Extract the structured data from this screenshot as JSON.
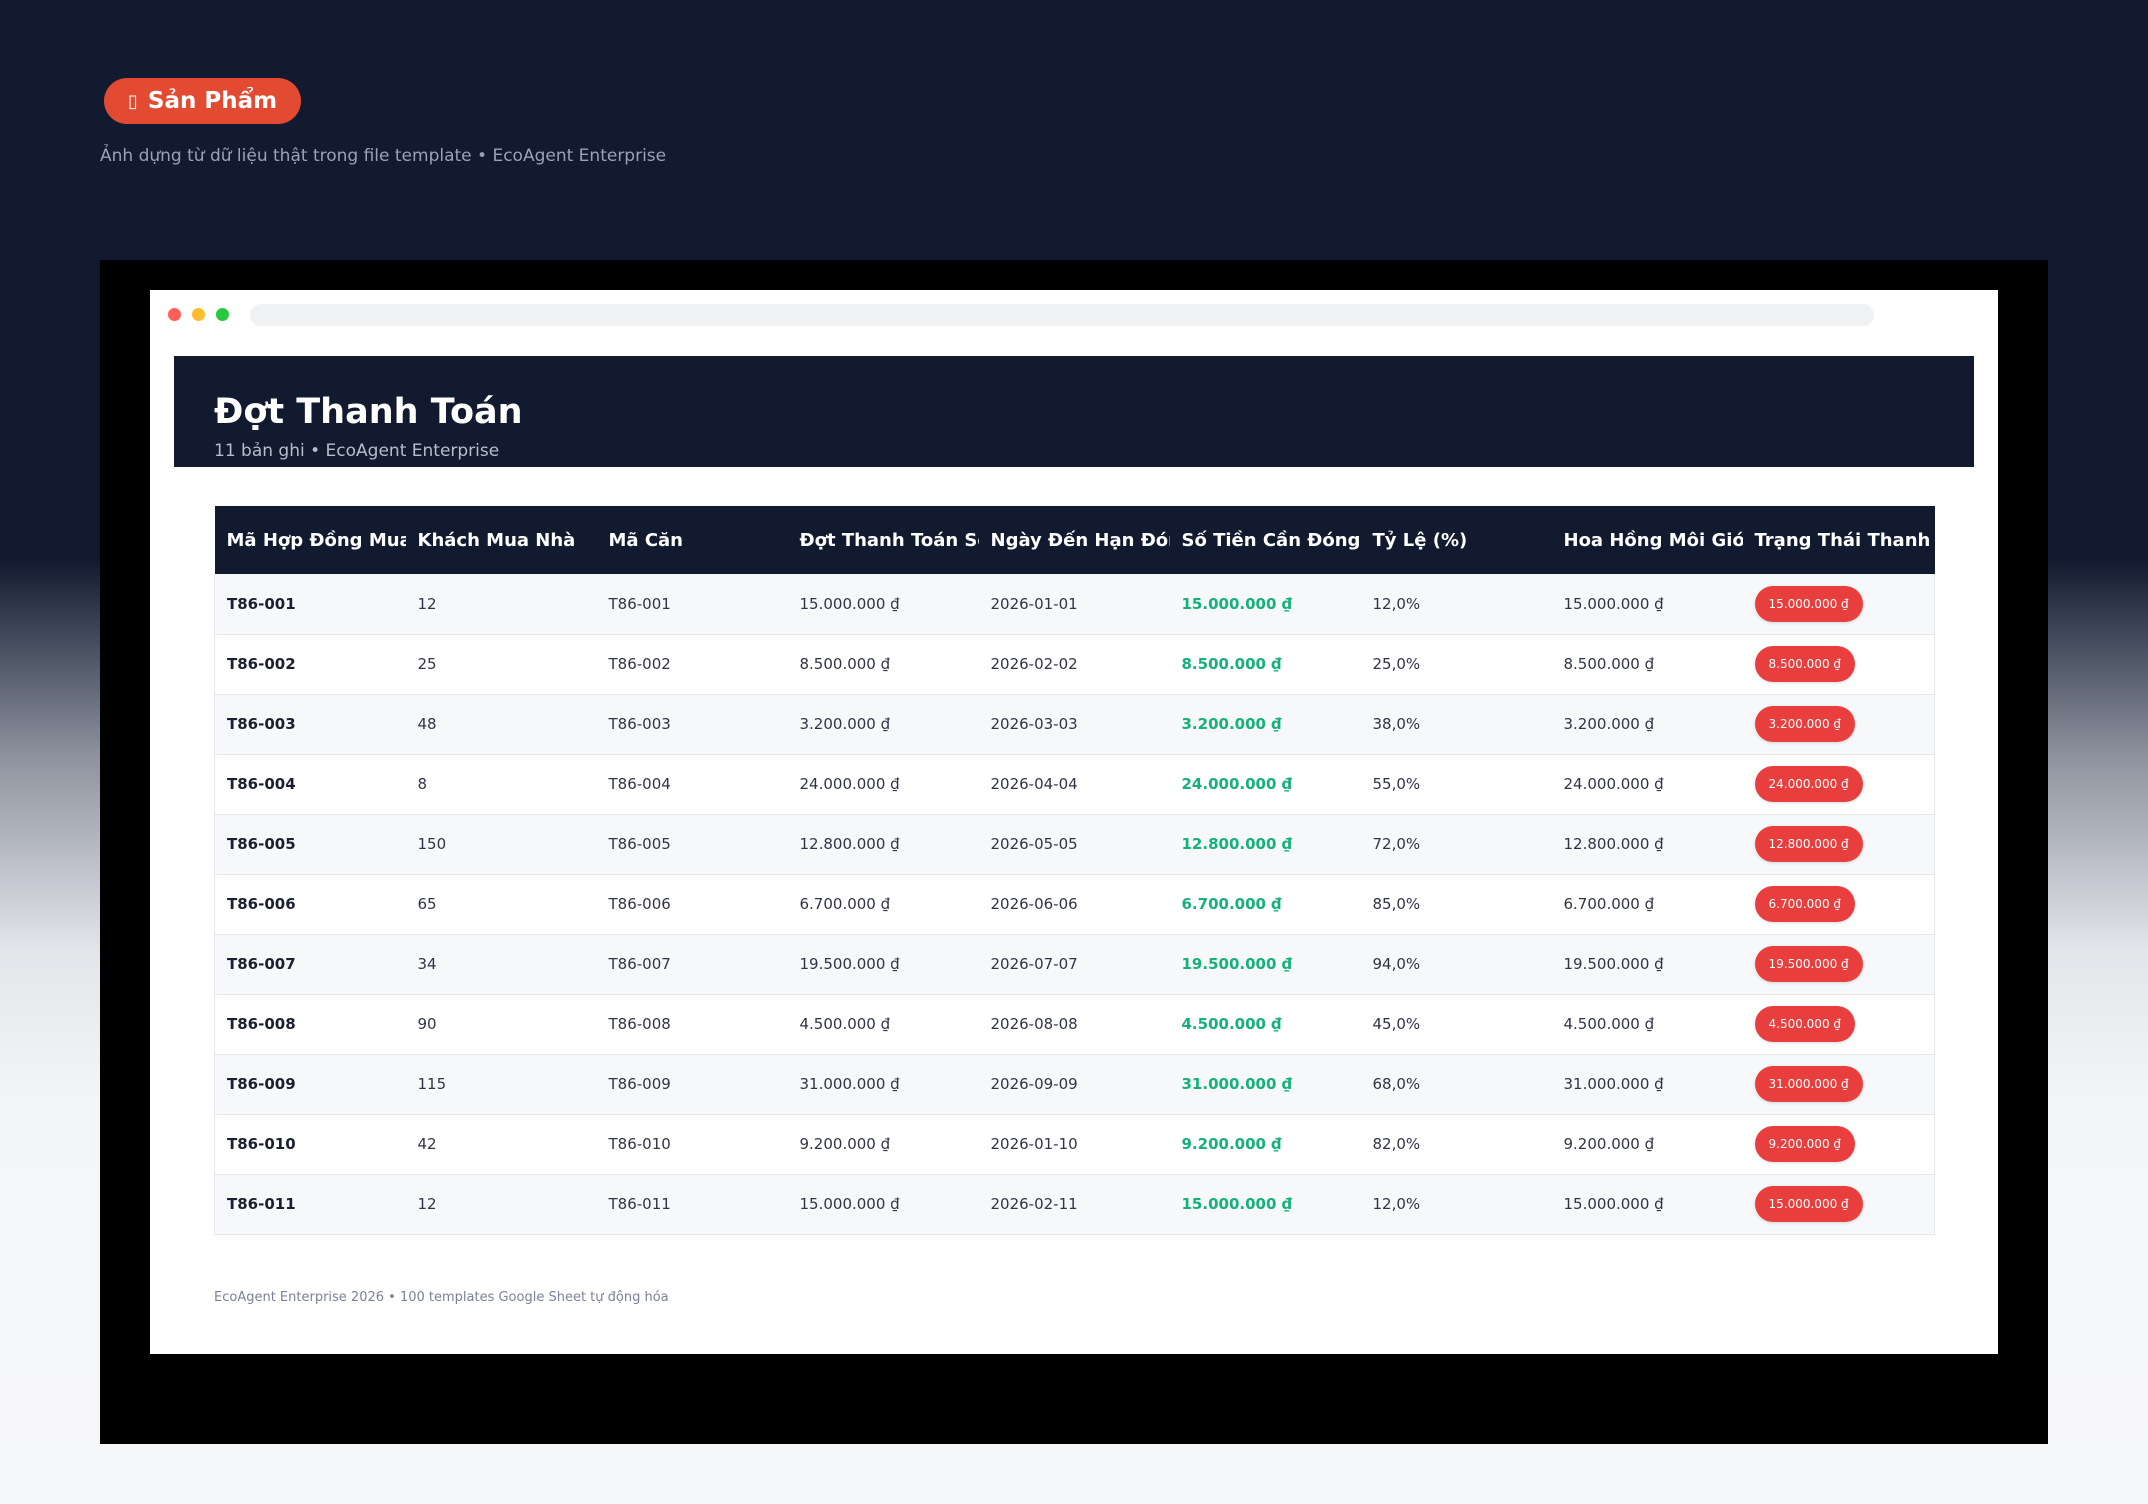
{
  "hero": {
    "badge_icon": "▯",
    "badge_label": "Sản Phẩm",
    "subtitle": "Ảnh dựng từ dữ liệu thật trong file template • EcoAgent Enterprise"
  },
  "sheet": {
    "title": "Đợt Thanh Toán",
    "subtitle": "11 bản ghi • EcoAgent Enterprise"
  },
  "table": {
    "headers": [
      "Mã Hợp Đồng Mua Bá",
      "Khách Mua Nhà",
      "Mã Căn",
      "Đợt Thanh Toán Số",
      "Ngày Đến Hạn Đóng",
      "Số Tiền Cần Đóng",
      "Tỷ Lệ (%)",
      "Hoa Hồng Môi Giới",
      "Trạng Thái Thanh T"
    ],
    "rows": [
      [
        "T86-001",
        "12",
        "T86-001",
        "15.000.000 ₫",
        "2026-01-01",
        "15.000.000 ₫",
        "12,0%",
        "15.000.000 ₫",
        "15.000.000 ₫"
      ],
      [
        "T86-002",
        "25",
        "T86-002",
        "8.500.000 ₫",
        "2026-02-02",
        "8.500.000 ₫",
        "25,0%",
        "8.500.000 ₫",
        "8.500.000 ₫"
      ],
      [
        "T86-003",
        "48",
        "T86-003",
        "3.200.000 ₫",
        "2026-03-03",
        "3.200.000 ₫",
        "38,0%",
        "3.200.000 ₫",
        "3.200.000 ₫"
      ],
      [
        "T86-004",
        "8",
        "T86-004",
        "24.000.000 ₫",
        "2026-04-04",
        "24.000.000 ₫",
        "55,0%",
        "24.000.000 ₫",
        "24.000.000 ₫"
      ],
      [
        "T86-005",
        "150",
        "T86-005",
        "12.800.000 ₫",
        "2026-05-05",
        "12.800.000 ₫",
        "72,0%",
        "12.800.000 ₫",
        "12.800.000 ₫"
      ],
      [
        "T86-006",
        "65",
        "T86-006",
        "6.700.000 ₫",
        "2026-06-06",
        "6.700.000 ₫",
        "85,0%",
        "6.700.000 ₫",
        "6.700.000 ₫"
      ],
      [
        "T86-007",
        "34",
        "T86-007",
        "19.500.000 ₫",
        "2026-07-07",
        "19.500.000 ₫",
        "94,0%",
        "19.500.000 ₫",
        "19.500.000 ₫"
      ],
      [
        "T86-008",
        "90",
        "T86-008",
        "4.500.000 ₫",
        "2026-08-08",
        "4.500.000 ₫",
        "45,0%",
        "4.500.000 ₫",
        "4.500.000 ₫"
      ],
      [
        "T86-009",
        "115",
        "T86-009",
        "31.000.000 ₫",
        "2026-09-09",
        "31.000.000 ₫",
        "68,0%",
        "31.000.000 ₫",
        "31.000.000 ₫"
      ],
      [
        "T86-010",
        "42",
        "T86-010",
        "9.200.000 ₫",
        "2026-01-10",
        "9.200.000 ₫",
        "82,0%",
        "9.200.000 ₫",
        "9.200.000 ₫"
      ],
      [
        "T86-011",
        "12",
        "T86-011",
        "15.000.000 ₫",
        "2026-02-11",
        "15.000.000 ₫",
        "12,0%",
        "15.000.000 ₫",
        "15.000.000 ₫"
      ]
    ]
  },
  "footer": {
    "text": "EcoAgent Enterprise 2026 • 100 templates Google Sheet tự động hóa"
  },
  "colors": {
    "dark_bg": "#111a2e",
    "badge": "#e24a32",
    "amount_green": "#16b07a",
    "status_red": "#e83e3e"
  }
}
